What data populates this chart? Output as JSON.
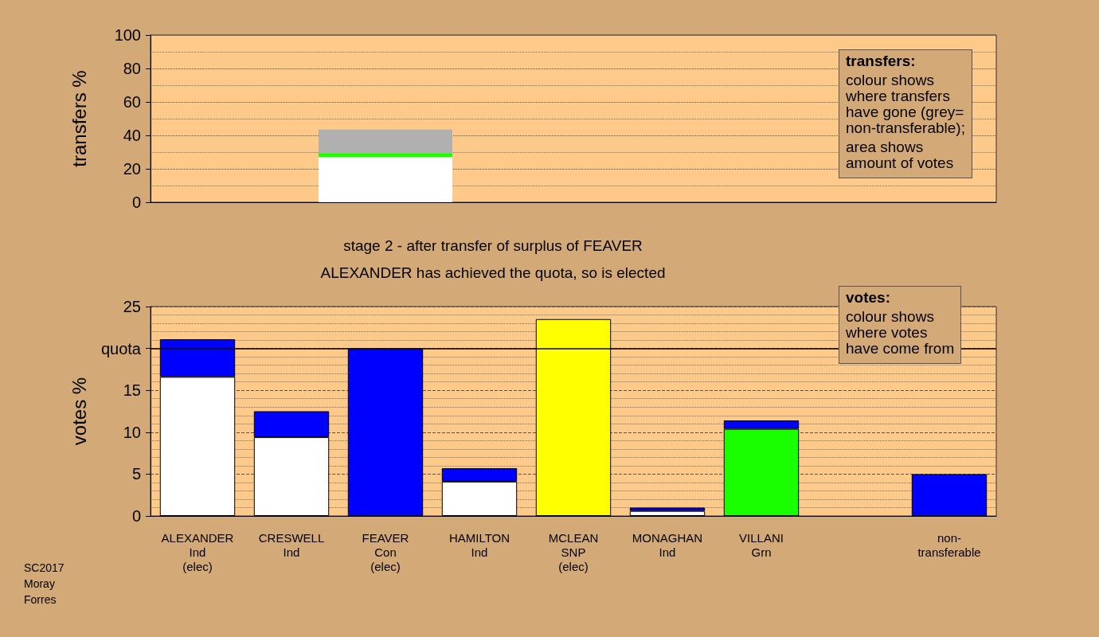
{
  "chart_data": [
    {
      "type": "bar",
      "ylabel": "transfers %",
      "categories": [
        null,
        null,
        null,
        null,
        null,
        null,
        null,
        null,
        null
      ],
      "stacked": true,
      "tick_labels": "y",
      "grid": "y",
      "ylim": [
        0,
        100
      ],
      "yticks": [
        0,
        20,
        40,
        60,
        80,
        100
      ],
      "series": [
        {
          "color": "#ffffff",
          "values": [
            null,
            null,
            27,
            null,
            null,
            null,
            null,
            null,
            null
          ]
        },
        {
          "color": "#1aff00",
          "values": [
            null,
            null,
            2.4,
            null,
            null,
            null,
            null,
            null,
            null
          ]
        },
        {
          "color": "#b0b0b0",
          "values": [
            null,
            null,
            14,
            null,
            null,
            null,
            null,
            null,
            null
          ]
        }
      ],
      "annotations": [
        "transfers:",
        "colour shows\nwhere transfers\nhave gone (grey=\nnon-transferable);",
        "area shows\namount of votes"
      ]
    },
    {
      "type": "bar",
      "title": "stage 2 - after transfer of surplus of FEAVER",
      "subtitle": "ALEXANDER has achieved the quota, so is elected",
      "ylabel": "votes %",
      "categories": [
        "ALEXANDER\nInd\n(elec)",
        "CRESWELL\nInd",
        "FEAVER\nCon\n(elec)",
        "HAMILTON\nInd",
        "MCLEAN\nSNP\n(elec)",
        "MONAGHAN\nInd",
        "VILLANI\nGrn",
        null,
        "non-\ntransferable"
      ],
      "stacked": true,
      "grid": "y",
      "ylim": [
        0,
        25
      ],
      "yticks": [
        0,
        5,
        10,
        15,
        {
          "value": 20,
          "label": "quota"
        },
        25
      ],
      "series": [
        {
          "color": "#ffffff",
          "values": [
            16.6,
            9.4,
            null,
            4.1,
            null,
            0.6,
            null,
            null,
            null
          ]
        },
        {
          "color": "#ffff00",
          "values": [
            null,
            null,
            null,
            null,
            23.5,
            null,
            null,
            null,
            null
          ]
        },
        {
          "color": "#1aff00",
          "values": [
            null,
            null,
            null,
            null,
            null,
            null,
            10.4,
            null,
            null
          ]
        },
        {
          "color": "#0000ff",
          "values": [
            4.5,
            3.1,
            20,
            1.6,
            null,
            0.4,
            1.0,
            null,
            5.0
          ]
        }
      ],
      "ref_lines": [
        {
          "axis": "y",
          "value": 20,
          "color": "#000000",
          "line_style": "solid"
        }
      ],
      "annotations": [
        "votes:",
        "colour shows\nwhere votes\nhave come from",
        "SC2017\nMoray\nForres"
      ]
    }
  ]
}
